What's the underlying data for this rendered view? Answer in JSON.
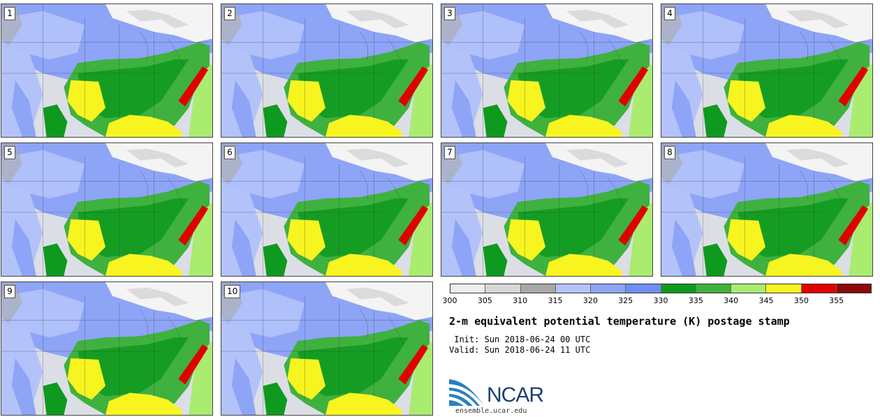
{
  "panels": [
    "1",
    "2",
    "3",
    "4",
    "5",
    "6",
    "7",
    "8",
    "9",
    "10"
  ],
  "colorbar": {
    "colors": [
      "#eeeeee",
      "#d7d7d7",
      "#a8a8a8",
      "#b3c3fa",
      "#8da4f7",
      "#6f8ef4",
      "#0e9a1e",
      "#3fb13f",
      "#a9ec70",
      "#f8f420",
      "#e00000",
      "#8a0a0a"
    ],
    "ticks": [
      "300",
      "305",
      "310",
      "315",
      "320",
      "325",
      "330",
      "335",
      "340",
      "345",
      "350",
      "355"
    ]
  },
  "title": "2-m equivalent potential temperature (K) postage stamp",
  "init": " Init: Sun 2018-06-24 00 UTC",
  "valid": "Valid: Sun 2018-06-24 11 UTC",
  "logo": {
    "text": "NCAR",
    "url": "ensemble.ucar.edu",
    "color": "#1b3f73",
    "accent": "#2b7fc0"
  }
}
